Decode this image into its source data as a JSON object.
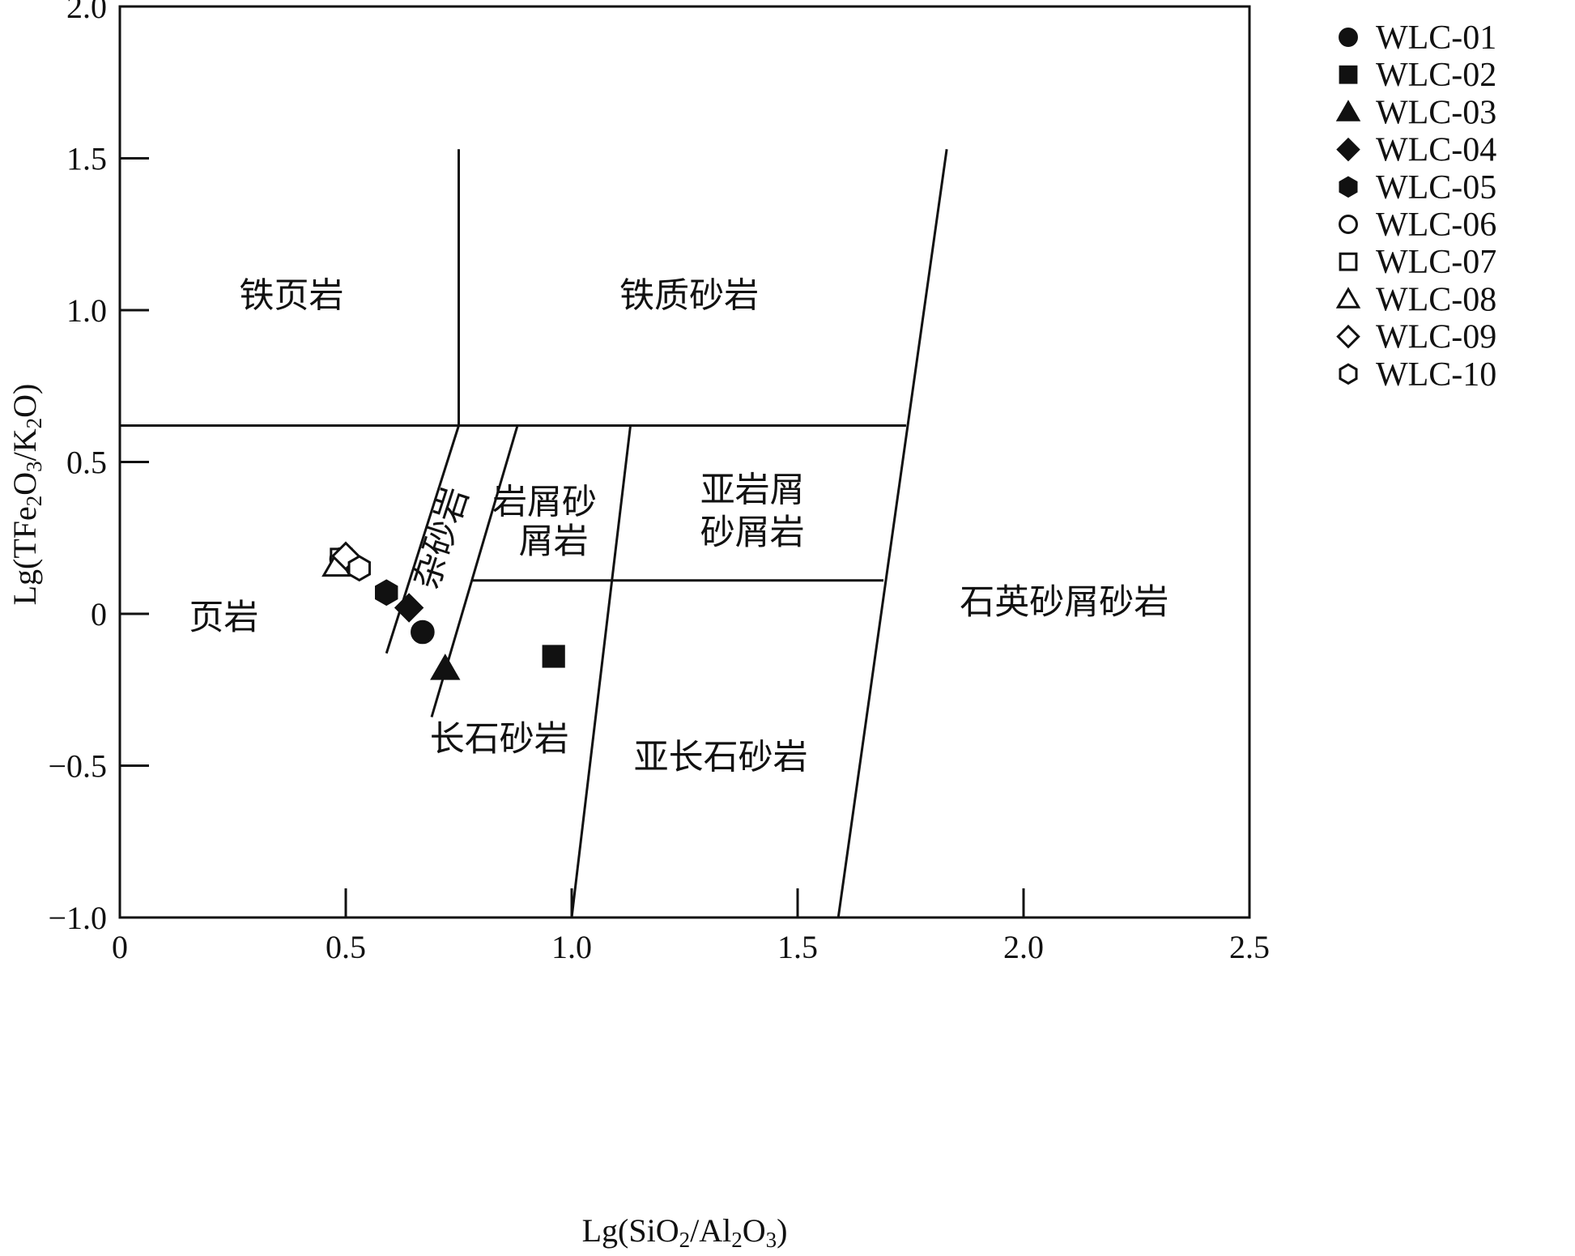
{
  "chart_data": {
    "type": "scatter",
    "xlabel_parts": [
      {
        "t": "Lg(SiO"
      },
      {
        "t": "2",
        "sub": true
      },
      {
        "t": "/Al"
      },
      {
        "t": "2",
        "sub": true
      },
      {
        "t": "O"
      },
      {
        "t": "3",
        "sub": true
      },
      {
        "t": ")"
      }
    ],
    "ylabel_parts": [
      {
        "t": "Lg(TFe"
      },
      {
        "t": "2",
        "sub": true
      },
      {
        "t": "O"
      },
      {
        "t": "3",
        "sub": true
      },
      {
        "t": "/K"
      },
      {
        "t": "2",
        "sub": true
      },
      {
        "t": "O)"
      }
    ],
    "xlim": [
      0,
      2.5
    ],
    "ylim": [
      -1.0,
      2.0
    ],
    "x_ticks": [
      {
        "v": 0,
        "label": "0"
      },
      {
        "v": 0.5,
        "label": "0.5"
      },
      {
        "v": 1.0,
        "label": "1.0"
      },
      {
        "v": 1.5,
        "label": "1.5"
      },
      {
        "v": 2.0,
        "label": "2.0"
      },
      {
        "v": 2.5,
        "label": "2.5"
      }
    ],
    "y_ticks": [
      {
        "v": -1.0,
        "label": "−1.0"
      },
      {
        "v": -0.5,
        "label": "−0.5"
      },
      {
        "v": 0,
        "label": "0"
      },
      {
        "v": 0.5,
        "label": "0.5"
      },
      {
        "v": 1.0,
        "label": "1.0"
      },
      {
        "v": 1.5,
        "label": "1.5"
      },
      {
        "v": 2.0,
        "label": "2.0"
      }
    ],
    "grid": false,
    "legend_position": "top-right",
    "boundaries": [
      [
        [
          0,
          0.62
        ],
        [
          1.74,
          0.62
        ]
      ],
      [
        [
          0.75,
          1.53
        ],
        [
          0.75,
          0.62
        ]
      ],
      [
        [
          0.75,
          0.62
        ],
        [
          0.59,
          -0.13
        ]
      ],
      [
        [
          0.88,
          0.62
        ],
        [
          0.69,
          -0.34
        ]
      ],
      [
        [
          1.13,
          0.62
        ],
        [
          1.0,
          -1.0
        ]
      ],
      [
        [
          1.83,
          1.53
        ],
        [
          1.59,
          -1.0
        ]
      ],
      [
        [
          0.78,
          0.11
        ],
        [
          1.69,
          0.11
        ]
      ]
    ],
    "regions": [
      {
        "label": "铁页岩",
        "x": 0.38,
        "y": 1.05
      },
      {
        "label": "铁质砂岩",
        "x": 1.26,
        "y": 1.05
      },
      {
        "label": "页岩",
        "x": 0.23,
        "y": -0.01
      },
      {
        "label": "杂砂岩",
        "x": 0.71,
        "y": 0.25,
        "rotate": -72
      },
      {
        "label": "岩屑砂",
        "x": 0.94,
        "y": 0.37
      },
      {
        "label": "屑岩",
        "x": 0.96,
        "y": 0.24
      },
      {
        "label": "亚岩屑",
        "x": 1.4,
        "y": 0.41
      },
      {
        "label": "砂屑岩",
        "x": 1.4,
        "y": 0.27
      },
      {
        "label": "石英砂屑砂岩",
        "x": 2.09,
        "y": 0.04
      },
      {
        "label": "长石砂岩",
        "x": 0.84,
        "y": -0.41
      },
      {
        "label": "亚长石砂岩",
        "x": 1.33,
        "y": -0.47
      }
    ],
    "series": [
      {
        "name": "WLC-01",
        "marker": "circle",
        "filled": true,
        "x": 0.67,
        "y": -0.06
      },
      {
        "name": "WLC-02",
        "marker": "square",
        "filled": true,
        "x": 0.96,
        "y": -0.14
      },
      {
        "name": "WLC-03",
        "marker": "triangle",
        "filled": true,
        "x": 0.72,
        "y": -0.18
      },
      {
        "name": "WLC-04",
        "marker": "diamond",
        "filled": true,
        "x": 0.64,
        "y": 0.02
      },
      {
        "name": "WLC-05",
        "marker": "hexagon",
        "filled": true,
        "x": 0.59,
        "y": 0.07
      },
      {
        "name": "WLC-06",
        "marker": "circle",
        "filled": false,
        "x": 0.49,
        "y": 0.18
      },
      {
        "name": "WLC-07",
        "marker": "square",
        "filled": false,
        "x": 0.49,
        "y": 0.18
      },
      {
        "name": "WLC-08",
        "marker": "triangle",
        "filled": false,
        "x": 0.48,
        "y": 0.16
      },
      {
        "name": "WLC-09",
        "marker": "diamond",
        "filled": false,
        "x": 0.5,
        "y": 0.19
      },
      {
        "name": "WLC-10",
        "marker": "hexagon",
        "filled": false,
        "x": 0.53,
        "y": 0.15
      }
    ]
  }
}
